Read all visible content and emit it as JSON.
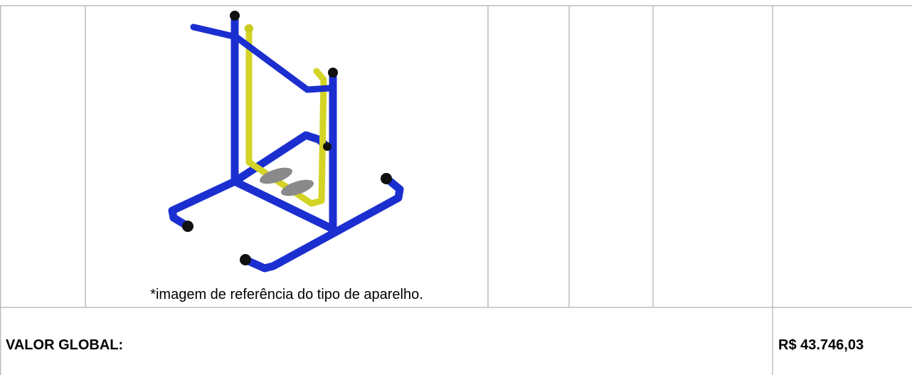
{
  "table": {
    "image_caption": "*imagem de referência do tipo de aparelho.",
    "total_label": "VALOR GLOBAL:",
    "total_value": "R$ 43.746,03"
  }
}
